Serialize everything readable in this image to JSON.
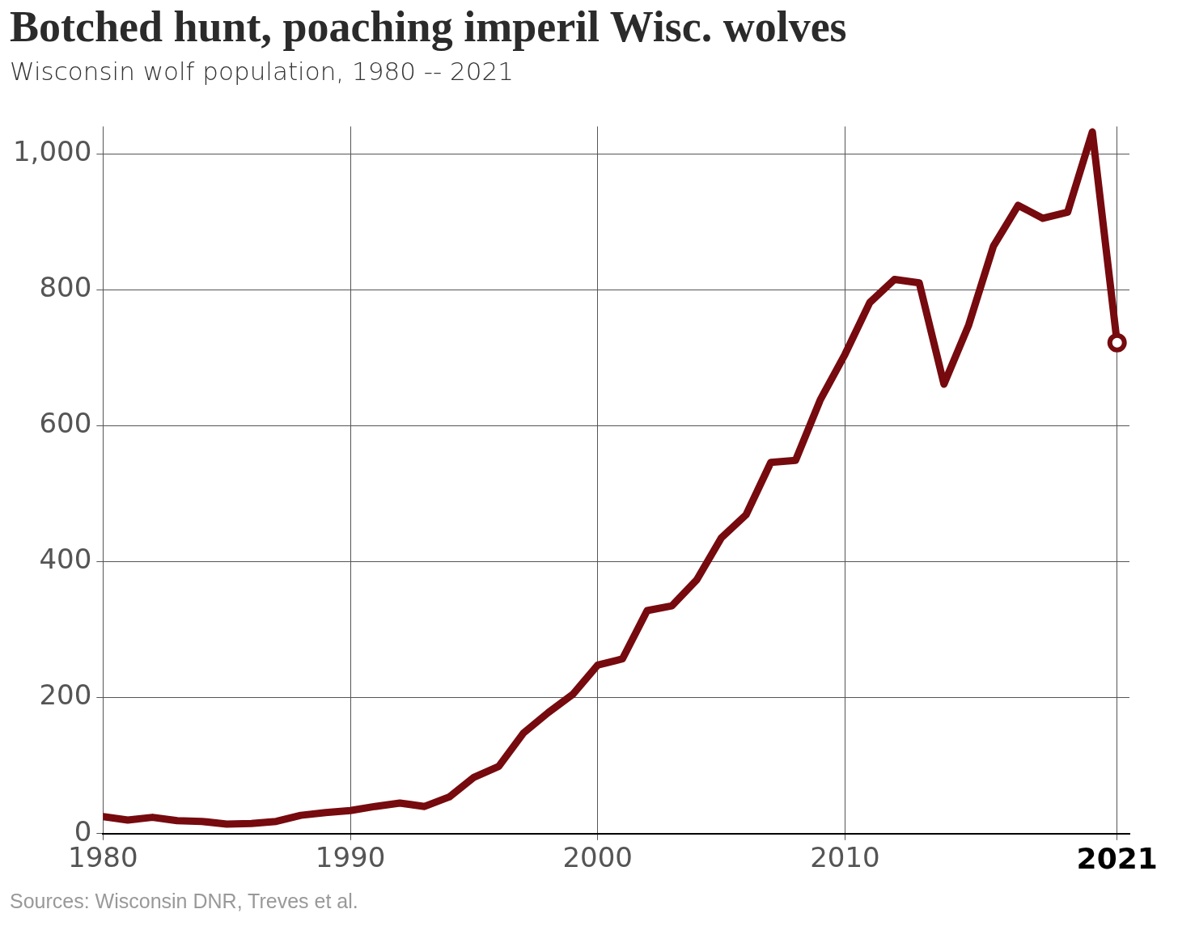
{
  "chart_data": {
    "type": "line",
    "title": "Botched hunt, poaching imperil Wisc. wolves",
    "subtitle": "Wisconsin wolf population, 1980 -- 2021",
    "x": [
      1980,
      1981,
      1982,
      1983,
      1984,
      1985,
      1986,
      1987,
      1988,
      1989,
      1990,
      1991,
      1992,
      1993,
      1994,
      1995,
      1996,
      1997,
      1998,
      1999,
      2000,
      2001,
      2002,
      2003,
      2004,
      2005,
      2006,
      2007,
      2008,
      2009,
      2010,
      2011,
      2012,
      2013,
      2014,
      2015,
      2016,
      2017,
      2018,
      2019,
      2020,
      2021
    ],
    "series": [
      {
        "color": "#760a0e",
        "values": [
          25,
          20,
          24,
          19,
          18,
          14,
          15,
          18,
          27,
          31,
          34,
          40,
          45,
          40,
          54,
          83,
          99,
          148,
          178,
          205,
          248,
          257,
          328,
          335,
          373,
          435,
          469,
          546,
          549,
          638,
          705,
          781,
          815,
          810,
          661,
          748,
          864,
          924,
          905,
          914,
          1032,
          722
        ]
      }
    ],
    "xlim": [
      1980,
      2021.5
    ],
    "xticks": [
      1980,
      1990,
      2000,
      2010,
      2021
    ],
    "ylim": [
      0,
      1040
    ],
    "yticks": [
      0,
      200,
      400,
      600,
      800,
      {
        "value": 1000,
        "label": "1,000"
      }
    ],
    "grid": true,
    "legend": false,
    "annotations": [
      "Sources: Wisconsin DNR, Treves et al."
    ]
  }
}
